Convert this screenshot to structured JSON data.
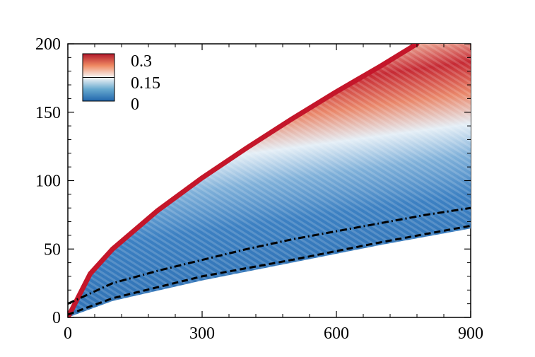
{
  "chart_data": {
    "type": "heatmap",
    "title": "",
    "xlabel": "",
    "ylabel": "",
    "xlim": [
      0,
      900
    ],
    "ylim": [
      0,
      200
    ],
    "x_ticks": [
      0,
      300,
      600,
      900
    ],
    "x_tick_labels": [
      "0",
      "300",
      "600",
      "900"
    ],
    "y_ticks": [
      0,
      50,
      100,
      150,
      200
    ],
    "y_tick_labels": [
      "0",
      "50",
      "100",
      "150",
      "200"
    ],
    "colorbar": {
      "range": [
        0,
        0.3
      ],
      "labels": [
        "0.3",
        "0.15",
        "0"
      ],
      "colors": {
        "high": "#b2182b",
        "mid": "#f7f7f7",
        "low": "#2166ac"
      },
      "placement": "top-left"
    },
    "colors": {
      "region_low": "#3c7fc0",
      "region_mid": "#d4e4f1",
      "band_high": "#c41e2f",
      "edge_outer": "#c4162a",
      "line_black": "#000000"
    },
    "boundaries": {
      "outer_edge": {
        "x": [
          0,
          50,
          100,
          200,
          300,
          400,
          500,
          600,
          700,
          780
        ],
        "y": [
          0,
          32,
          50,
          78,
          102,
          124,
          145,
          165,
          184,
          200
        ]
      },
      "lower_edge": {
        "x": [
          0,
          100,
          300,
          500,
          700,
          900
        ],
        "y": [
          0,
          12,
          27,
          40,
          53,
          65
        ]
      },
      "dash_dot_line": {
        "x": [
          0,
          100,
          200,
          300,
          400,
          500,
          600,
          700,
          800,
          900
        ],
        "y": [
          10,
          25,
          34,
          42,
          50,
          57,
          63,
          69,
          75,
          80
        ]
      },
      "dashed_line": {
        "x": [
          0,
          100,
          300,
          500,
          700,
          900
        ],
        "y": [
          2,
          14,
          30,
          42,
          55,
          67
        ]
      }
    }
  }
}
